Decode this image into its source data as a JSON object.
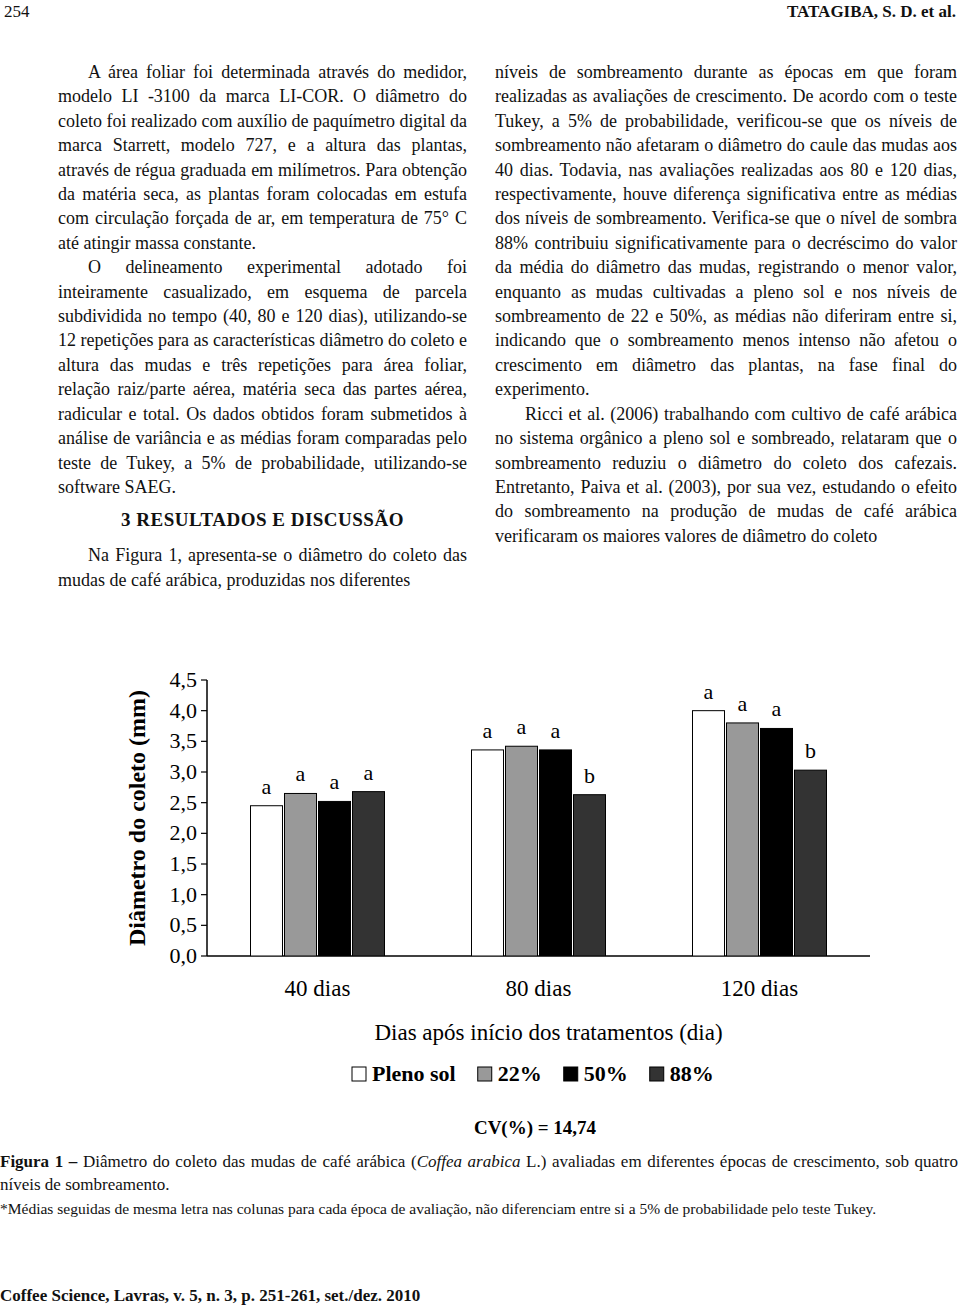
{
  "page": {
    "header": {
      "page_number": "254",
      "running_head": "TATAGIBA, S. D. et al."
    },
    "left_column": {
      "paragraphs": [
        "A área foliar foi determinada através do medidor, modelo LI -3100 da marca LI-COR. O diâmetro do coleto foi realizado com auxílio de paquímetro digital da marca Starrett, modelo 727, e a altura das plantas, através de régua graduada em milímetros. Para obtenção da matéria seca, as plantas foram colocadas em estufa com circulação forçada de ar, em temperatura de 75° C até atingir massa constante.",
        "O delineamento experimental adotado foi inteiramente casualizado, em esquema de parcela subdividida no tempo (40, 80 e 120 dias), utilizando-se 12 repetições para as características diâmetro do coleto e altura das mudas e três repetições para área foliar, relação raiz/parte aérea, matéria seca das partes aérea, radicular e total. Os dados obtidos foram submetidos à análise de variância e as médias foram comparadas pelo teste de Tukey, a 5% de probabilidade, utilizando-se software SAEG."
      ],
      "heading": "3 RESULTADOS E DISCUSSÃO",
      "after_heading": "Na Figura 1, apresenta-se o diâmetro do coleto das mudas de café arábica, produzidas nos diferentes"
    },
    "right_column": {
      "paragraphs": [
        "níveis de sombreamento durante as épocas em que foram realizadas as avaliações de crescimento. De acordo com o teste Tukey, a 5% de probabilidade, verificou-se que os níveis de sombreamento não afetaram o diâmetro do caule das mudas aos 40 dias. Todavia, nas avaliações realizadas aos 80 e 120 dias, respectivamente, houve diferença significativa entre as médias dos níveis de sombreamento. Verifica-se que o nível de sombra 88% contribuiu significativamente para o decréscimo do valor da média do diâmetro das mudas, registrando o menor valor, enquanto as mudas cultivadas a pleno sol e nos níveis de sombreamento de 22 e 50%, as médias não diferiram entre si, indicando que o sombreamento menos intenso não afetou o crescimento em diâmetro das plantas, na fase final do experimento.",
        "Ricci et al. (2006) trabalhando com cultivo de café arábica no sistema orgânico a pleno sol e sombreado, relataram que o sombreamento reduziu o diâmetro do coleto dos cafezais. Entretanto, Paiva et al. (2003), por sua vez, estudando o efeito do sombreamento na produção de mudas de café arábica verificaram os maiores valores de diâmetro do coleto"
      ]
    },
    "figure": {
      "caption_label": "Figura 1 –",
      "caption_before": " Diâmetro do coleto das mudas de café arábica (",
      "caption_species": "Coffea arabica",
      "caption_after": " L.) avaliadas em diferentes épocas de crescimento, sob quatro níveis de sombreamento.",
      "footnote": "*Médias seguidas de mesma letra nas colunas para cada época de avaliação, não diferenciam entre si a 5% de probabilidade pelo teste Tukey."
    },
    "footer": "Coffee Science, Lavras, v. 5, n. 3, p. 251-261, set./dez. 2010"
  },
  "chart_data": {
    "type": "bar",
    "x_label": "Dias após início dos tratamentos (dia)",
    "y_label": "Diâmetro do coleto (mm)",
    "categories": [
      "40 dias",
      "80 dias",
      "120 dias"
    ],
    "series": [
      {
        "name": "Pleno sol",
        "color": "#ffffff",
        "values": [
          2.45,
          3.36,
          4.0
        ],
        "groups": [
          "a",
          "a",
          "a"
        ]
      },
      {
        "name": "22%",
        "color": "#999999",
        "values": [
          2.65,
          3.42,
          3.8
        ],
        "groups": [
          "a",
          "a",
          "a"
        ]
      },
      {
        "name": "50%",
        "color": "#000000",
        "values": [
          2.52,
          3.36,
          3.71
        ],
        "groups": [
          "a",
          "a",
          "a"
        ]
      },
      {
        "name": "88%",
        "color": "#333333",
        "values": [
          2.68,
          2.63,
          3.03
        ],
        "groups": [
          "a",
          "b",
          "b"
        ]
      }
    ],
    "ylim": [
      0,
      4.5
    ],
    "yticks": [
      {
        "value": 0,
        "label": "0,0"
      },
      {
        "value": 0.5,
        "label": "0,5"
      },
      {
        "value": 1,
        "label": "1,0"
      },
      {
        "value": 1.5,
        "label": "1,5"
      },
      {
        "value": 2,
        "label": "2,0"
      },
      {
        "value": 2.5,
        "label": "2,5"
      },
      {
        "value": 3,
        "label": "3,0"
      },
      {
        "value": 3.5,
        "label": "3,5"
      },
      {
        "value": 4,
        "label": "4,0"
      },
      {
        "value": 4.5,
        "label": "4,5"
      }
    ],
    "grid": false,
    "legend": "bottom",
    "annotations": [
      "CV(%) = 14,74"
    ]
  }
}
